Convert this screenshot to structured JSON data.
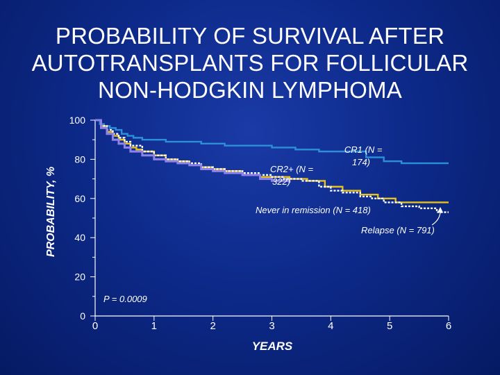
{
  "slide": {
    "title_lines": [
      "PROBABILITY OF SURVIVAL AFTER",
      "AUTOTRANSPLANTS FOR FOLLICULAR",
      "NON-HODGKIN LYMPHOMA"
    ]
  },
  "chart_data": {
    "type": "line",
    "title": "PROBABILITY OF SURVIVAL AFTER AUTOTRANSPLANTS FOR FOLLICULAR NON-HODGKIN LYMPHOMA",
    "xlabel": "YEARS",
    "ylabel": "PROBABILITY, %",
    "xlim": [
      0,
      6
    ],
    "ylim": [
      0,
      100
    ],
    "xticks": [
      0,
      1,
      2,
      3,
      4,
      5,
      6
    ],
    "yticks": [
      0,
      20,
      40,
      60,
      80,
      100
    ],
    "xtick_labels": [
      "0",
      "1",
      "2",
      "3",
      "4",
      "5",
      "6"
    ],
    "ytick_labels": [
      "0",
      "20",
      "40",
      "60",
      "80",
      "100"
    ],
    "grid": false,
    "annotations": {
      "pvalue": "P = 0.0009",
      "cr1": "CR1 (N = 174)",
      "cr2": "CR2+ (N = 322)",
      "never": "Never in remission (N = 418)",
      "relapse": "Relapse (N = 791)"
    },
    "series": [
      {
        "name": "CR1 (N = 174)",
        "color": "#2c8fd8",
        "dash": "",
        "x": [
          0,
          0.08,
          0.15,
          0.25,
          0.35,
          0.45,
          0.55,
          0.65,
          0.8,
          1.0,
          1.2,
          1.5,
          1.8,
          2.2,
          2.6,
          3.0,
          3.4,
          3.8,
          4.2,
          4.6,
          4.9,
          5.2,
          5.6,
          6.0
        ],
        "y": [
          100,
          98,
          97,
          96,
          95,
          93,
          92,
          91,
          90,
          90,
          89,
          89,
          88,
          87,
          87,
          86,
          85,
          84,
          84,
          81,
          79,
          78,
          78,
          78
        ]
      },
      {
        "name": "CR2+ (N = 322)",
        "color": "#e8c21c",
        "dash": "",
        "x": [
          0,
          0.1,
          0.2,
          0.3,
          0.4,
          0.5,
          0.6,
          0.7,
          0.8,
          1.0,
          1.2,
          1.4,
          1.6,
          1.8,
          2.0,
          2.2,
          2.5,
          2.8,
          3.0,
          3.3,
          3.6,
          3.9,
          4.2,
          4.5,
          4.8,
          5.1,
          5.5,
          6.0
        ],
        "y": [
          100,
          97,
          94,
          92,
          90,
          88,
          86,
          85,
          84,
          82,
          80,
          79,
          77,
          76,
          75,
          74,
          72,
          71,
          71,
          70,
          69,
          66,
          64,
          62,
          60,
          58,
          58,
          58
        ]
      },
      {
        "name": "Never in remission (N = 418)",
        "color": "#ffffff",
        "dash": "3 2",
        "x": [
          0,
          0.1,
          0.2,
          0.3,
          0.4,
          0.5,
          0.6,
          0.8,
          1.0,
          1.2,
          1.4,
          1.6,
          1.8,
          2.0,
          2.2,
          2.5,
          2.8,
          3.0,
          3.2,
          3.5,
          3.8,
          4.0,
          4.2,
          4.5,
          4.7,
          4.9,
          5.2,
          5.5,
          5.8,
          6.0
        ],
        "y": [
          100,
          97,
          95,
          93,
          91,
          89,
          87,
          84,
          82,
          80,
          79,
          78,
          76,
          75,
          74,
          73,
          72,
          71,
          70,
          69,
          66,
          64,
          63,
          61,
          60,
          58,
          56,
          55,
          53,
          53
        ]
      },
      {
        "name": "Relapse (N = 791)",
        "color": "#8f83e8",
        "dash": "",
        "x": [
          0,
          0.1,
          0.2,
          0.3,
          0.4,
          0.5,
          0.6,
          0.8,
          1.0,
          1.2,
          1.4,
          1.6,
          1.8,
          2.0,
          2.2,
          2.5,
          2.8,
          3.0,
          3.3
        ],
        "y": [
          100,
          96,
          93,
          90,
          88,
          86,
          84,
          82,
          80,
          79,
          78,
          77,
          75,
          74,
          73,
          72,
          70,
          69,
          68
        ]
      }
    ]
  }
}
